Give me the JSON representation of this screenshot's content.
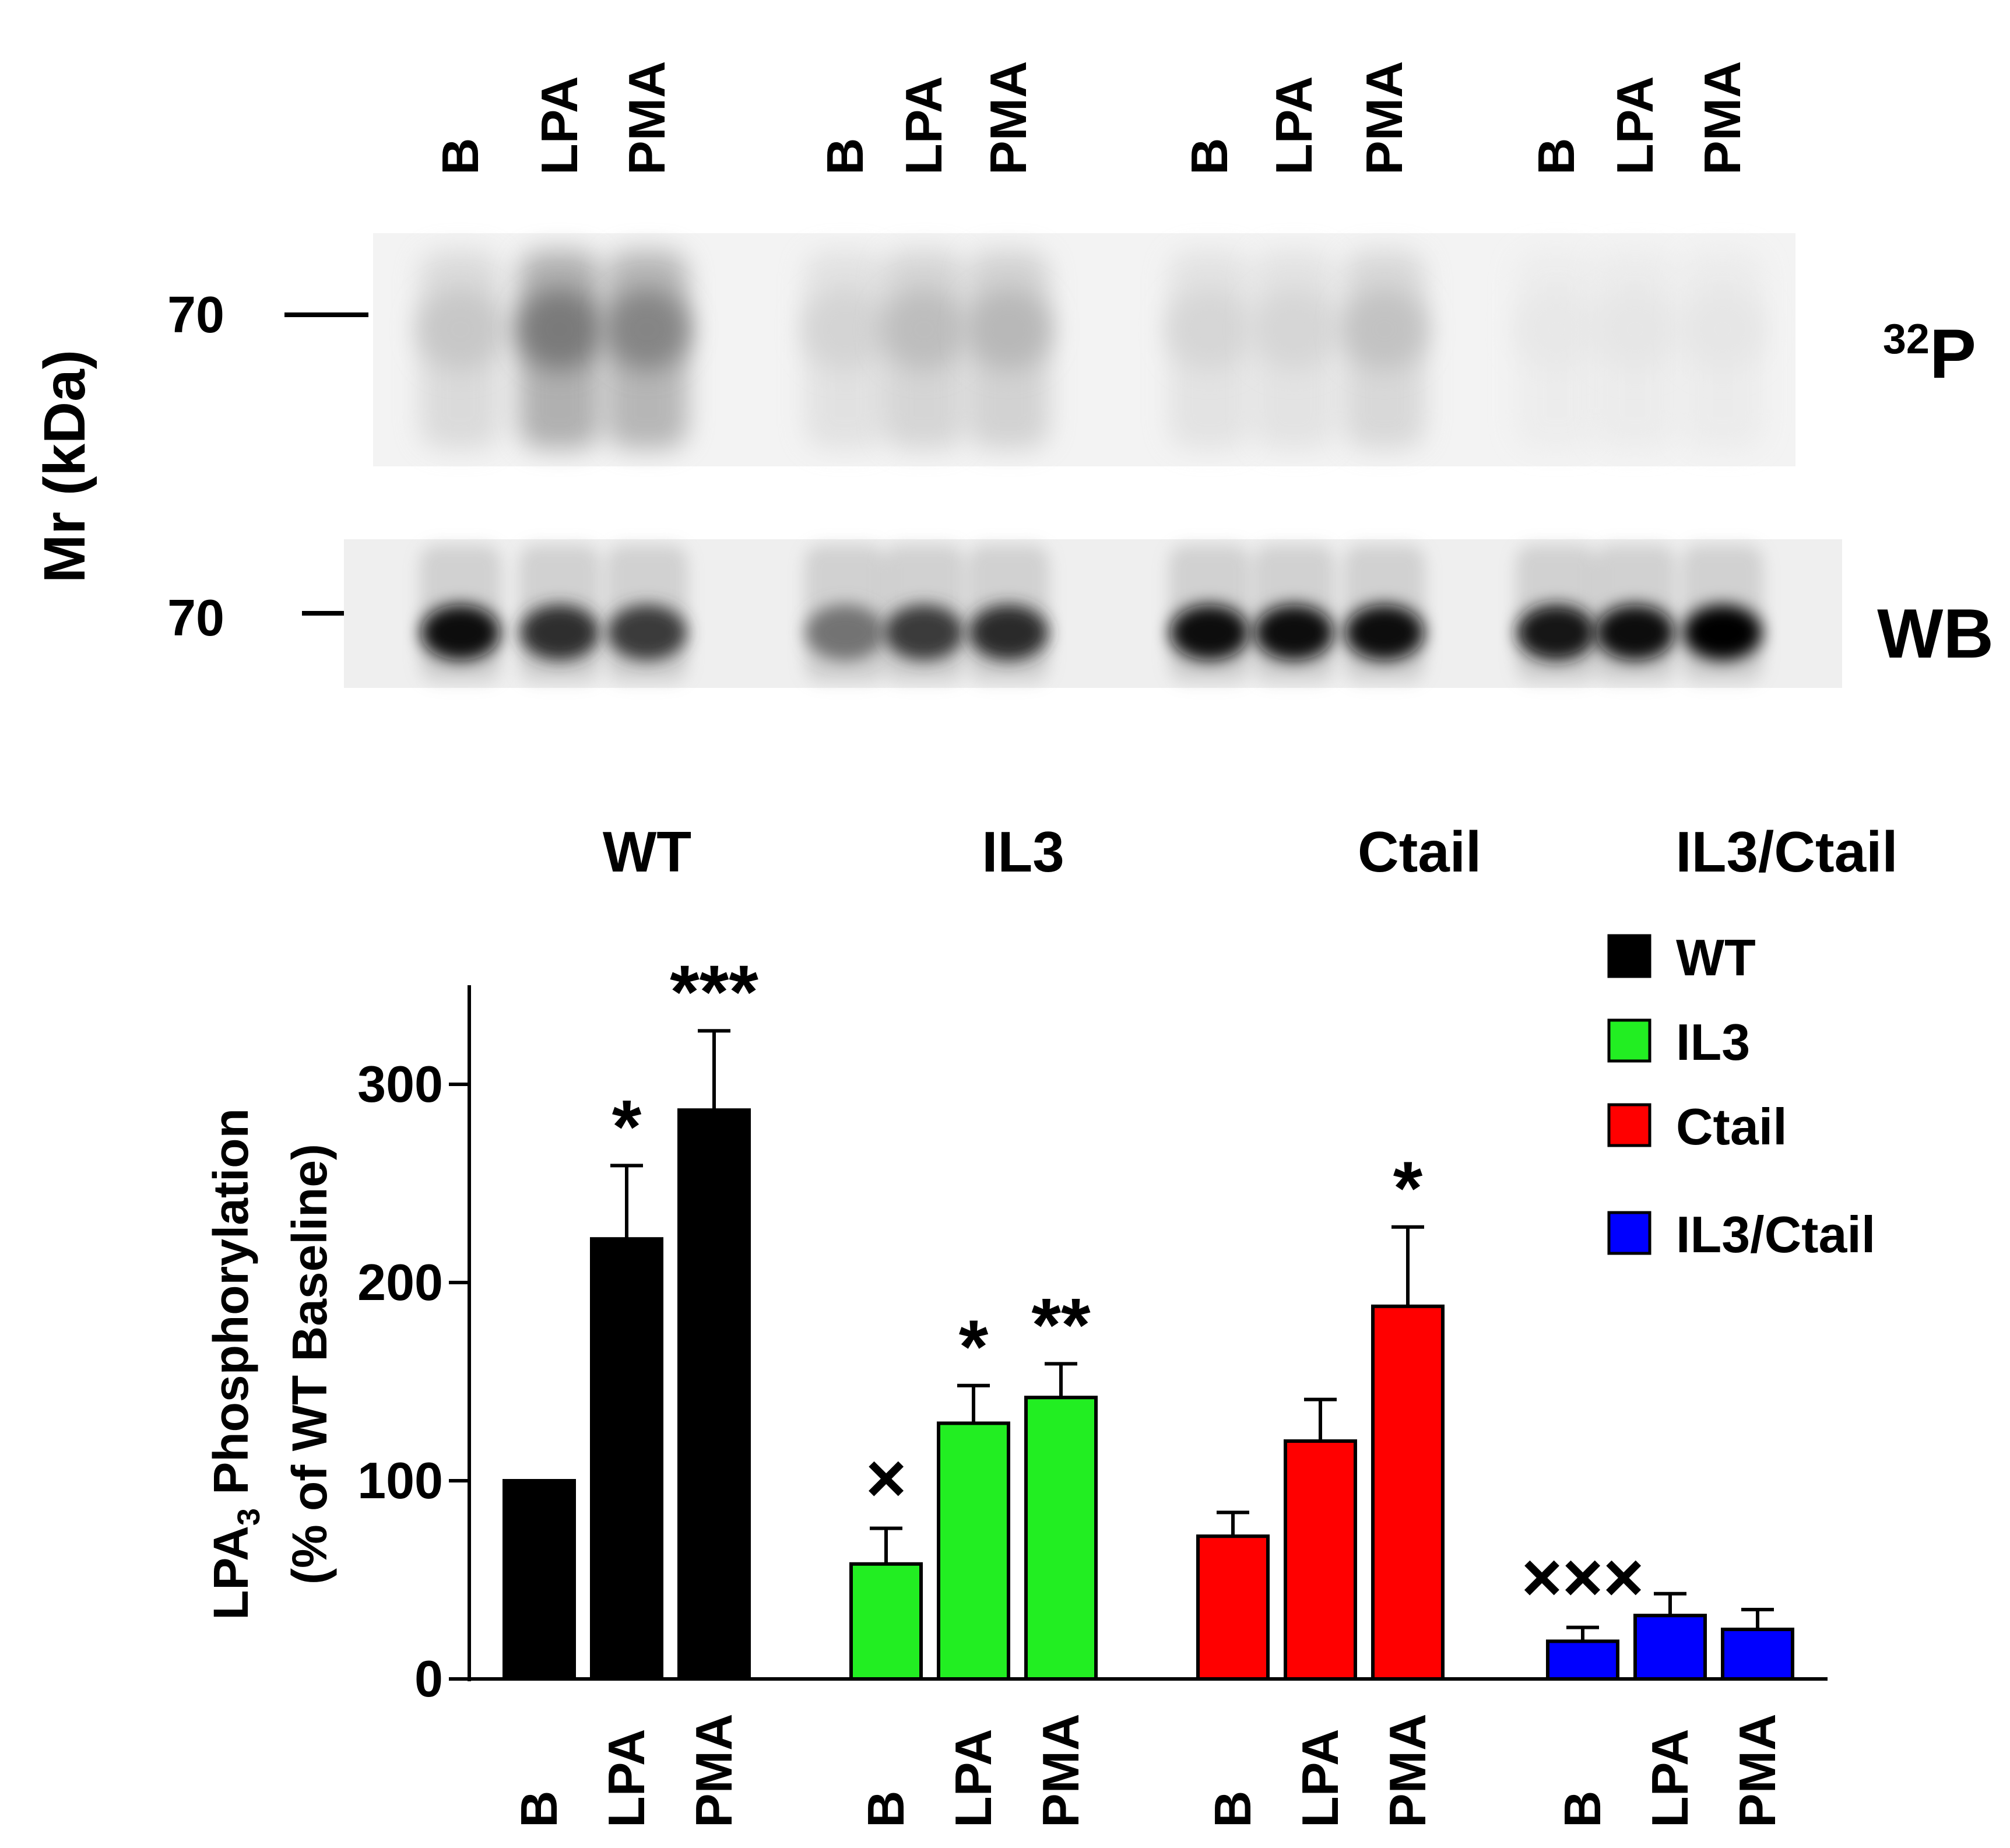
{
  "blot": {
    "mr_label": "Mr (kDa)",
    "marker_top": "70",
    "marker_bottom": "70",
    "label_32p": "P",
    "label_32p_sup": "32",
    "label_wb": "WB",
    "lane_labels": [
      "B",
      "LPA",
      "PMA"
    ],
    "p32_intensity": [
      [
        0.22,
        0.52,
        0.48
      ],
      [
        0.17,
        0.26,
        0.28
      ],
      [
        0.16,
        0.16,
        0.24
      ],
      [
        0.09,
        0.1,
        0.1
      ]
    ],
    "wb_intensity": [
      [
        0.95,
        0.8,
        0.75
      ],
      [
        0.5,
        0.75,
        0.82
      ],
      [
        0.95,
        0.95,
        0.95
      ],
      [
        0.9,
        0.95,
        0.98
      ]
    ]
  },
  "group_names": [
    "WT",
    "IL3",
    "Ctail",
    "IL3/Ctail"
  ],
  "legend": {
    "items": [
      {
        "label": "WT",
        "color": "#000000"
      },
      {
        "label": "IL3",
        "color": "#22ee22"
      },
      {
        "label": "Ctail",
        "color": "#ff0000"
      },
      {
        "label": "IL3/Ctail",
        "color": "#0000ff"
      }
    ]
  },
  "chart_data": {
    "type": "bar",
    "ylabel_line1": "LPA",
    "ylabel_sub": "3",
    "ylabel_line1_rest": " Phosphorylation",
    "ylabel_line2": "(% of WT Baseline)",
    "ylim": [
      0,
      350
    ],
    "yticks": [
      0,
      100,
      200,
      300
    ],
    "categories": [
      "B",
      "LPA",
      "PMA"
    ],
    "series": [
      {
        "name": "WT",
        "color": "#000000",
        "values": [
          100,
          222,
          287
        ],
        "errors": [
          0,
          37,
          40
        ],
        "marks": [
          "",
          "*",
          "***"
        ]
      },
      {
        "name": "IL3",
        "color": "#22ee22",
        "values": [
          58,
          129,
          142
        ],
        "errors": [
          18,
          19,
          17
        ],
        "marks": [
          "×",
          "*",
          "**"
        ]
      },
      {
        "name": "Ctail",
        "color": "#ff0000",
        "values": [
          72,
          120,
          188
        ],
        "errors": [
          12,
          21,
          40
        ],
        "marks": [
          "",
          "",
          "*"
        ]
      },
      {
        "name": "IL3/Ctail",
        "color": "#0000ff",
        "values": [
          19,
          32,
          25
        ],
        "errors": [
          7,
          11,
          10
        ],
        "marks": [
          "×××",
          "",
          ""
        ]
      }
    ]
  }
}
